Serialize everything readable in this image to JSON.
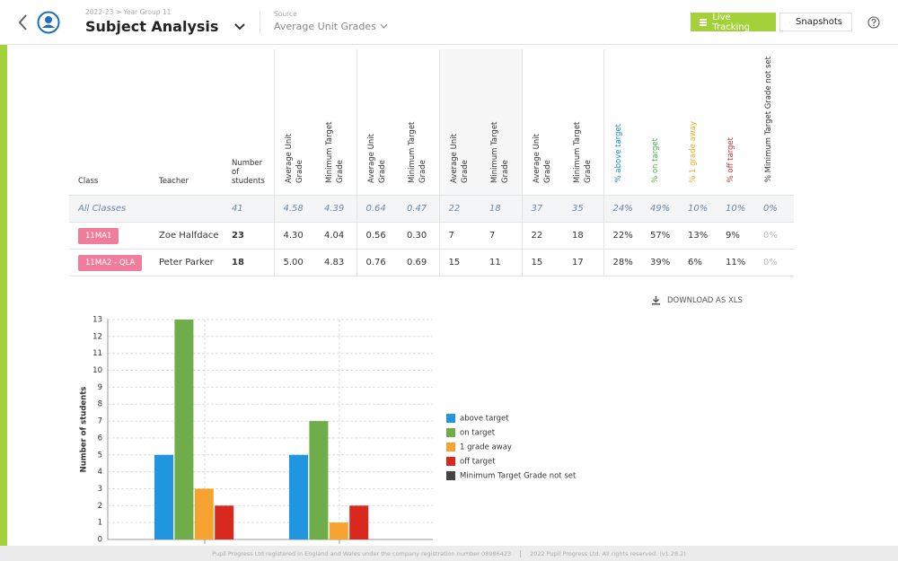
{
  "header": {
    "breadcrumb": "2022-23 > Year Group 11",
    "title": "Subject Analysis",
    "source_label": "Source",
    "source": "Average Unit Grades",
    "buttons": [
      "Live Tracking",
      "Snapshots"
    ]
  },
  "table": {
    "columns": [
      "Class",
      "Teacher",
      "Number of students",
      "Average Unit Grade",
      "Minimum Target Grade",
      "Average Unit Grade",
      "Minimum Target Grade",
      "Average Unit Grade",
      "Minimum Target Grade",
      "Average Unit Grade",
      "Minimum Target Grade",
      "% above target",
      "% on target",
      "% 1 grade away",
      "% off target",
      "% Minimum Target Grade not set"
    ],
    "rows": [
      [
        "All Classes",
        null,
        "41",
        "4.58",
        "4.39",
        "0.64",
        "0.47",
        "22",
        "18",
        "37",
        "35",
        "24%",
        "49%",
        "10%",
        "10%",
        "0%"
      ],
      [
        "11MA1",
        "Zoe Halfdace",
        "23",
        "4.30",
        "4.04",
        "0.56",
        "0.30",
        "7",
        "7",
        "22",
        "18",
        "22%",
        "57%",
        "13%",
        "9%",
        "0%"
      ],
      [
        "11MA2 - QLA",
        "Peter Parker",
        "18",
        "5.00",
        "4.83",
        "0.76",
        "0.69",
        "15",
        "11",
        "15",
        "17",
        "28%",
        "39%",
        "6%",
        "11%",
        "0%"
      ]
    ]
  },
  "download": "DOWNLOAD AS XLS",
  "chart_data": {
    "type": "bar",
    "ylabel": "Number of students",
    "categories": [
      null,
      null
    ],
    "series": [
      {
        "name": "above target",
        "color": "#2196e0",
        "values": [
          5,
          5
        ]
      },
      {
        "name": "on target",
        "color": "#6fad4a",
        "values": [
          13,
          7
        ]
      },
      {
        "name": "1 grade away",
        "color": "#f7a330",
        "values": [
          3,
          1
        ]
      },
      {
        "name": "off target",
        "color": "#d9281e",
        "values": [
          2,
          2
        ]
      },
      {
        "name": "Minimum Target Grade not set",
        "color": "#444444",
        "values": [
          0,
          0
        ]
      }
    ],
    "ylim": [
      0,
      13
    ],
    "yticks": [
      0,
      1,
      2,
      3,
      4,
      5,
      6,
      7,
      8,
      9,
      10,
      11,
      12,
      13
    ],
    "grid": true,
    "legend": "right"
  },
  "footer": {
    "registration": "Pupil Progress Ltd registered in England and Wales under the company registration number 08986423",
    "copyright": "2022 Pupil Progress Ltd. All rights reserved. (v1.28.2)"
  }
}
